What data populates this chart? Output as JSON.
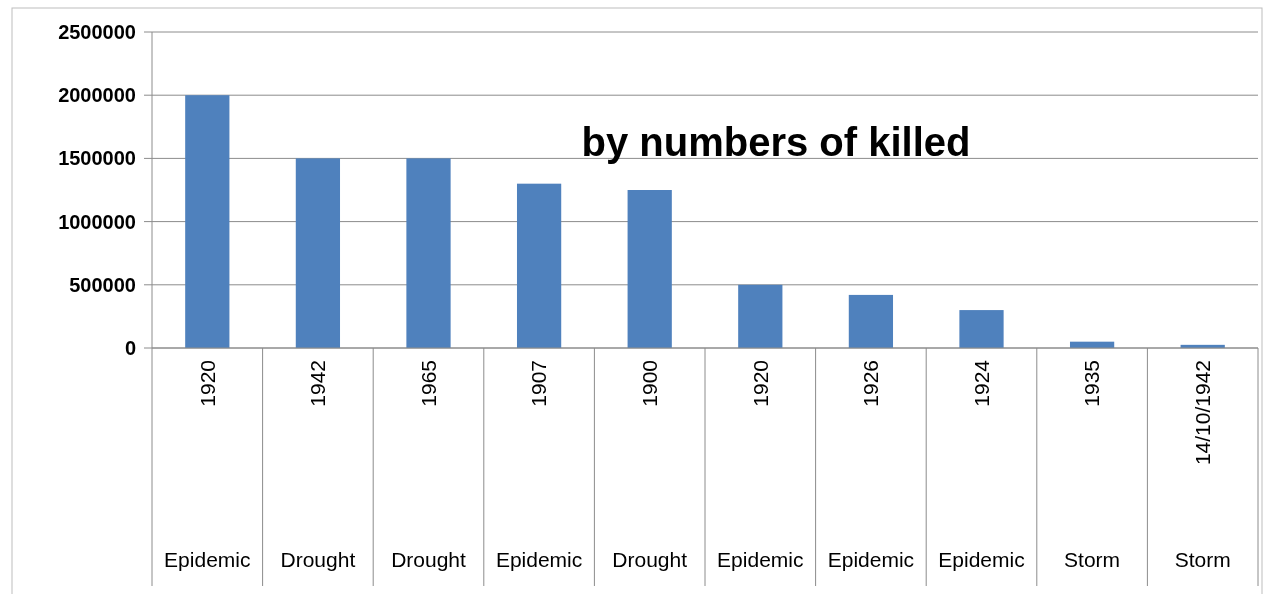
{
  "chart_data": {
    "type": "bar",
    "title": "by numbers of killed",
    "categories": [
      "1920",
      "1942",
      "1965",
      "1907",
      "1900",
      "1920",
      "1926",
      "1924",
      "1935",
      "14/10/1942"
    ],
    "values": [
      2000000,
      1500000,
      1500000,
      1300000,
      1250000,
      500000,
      420000,
      300000,
      50000,
      25000
    ],
    "color": "#4f81bd",
    "annotations": [
      "Epidemic",
      "Drought",
      "Drought",
      "Epidemic",
      "Drought",
      "Epidemic",
      "Epidemic",
      "Epidemic",
      "Storm",
      "Storm"
    ],
    "ylim": [
      0,
      2500000
    ],
    "yticks": [
      0,
      500000,
      1000000,
      1500000,
      2000000,
      2500000
    ],
    "grid": "y"
  }
}
